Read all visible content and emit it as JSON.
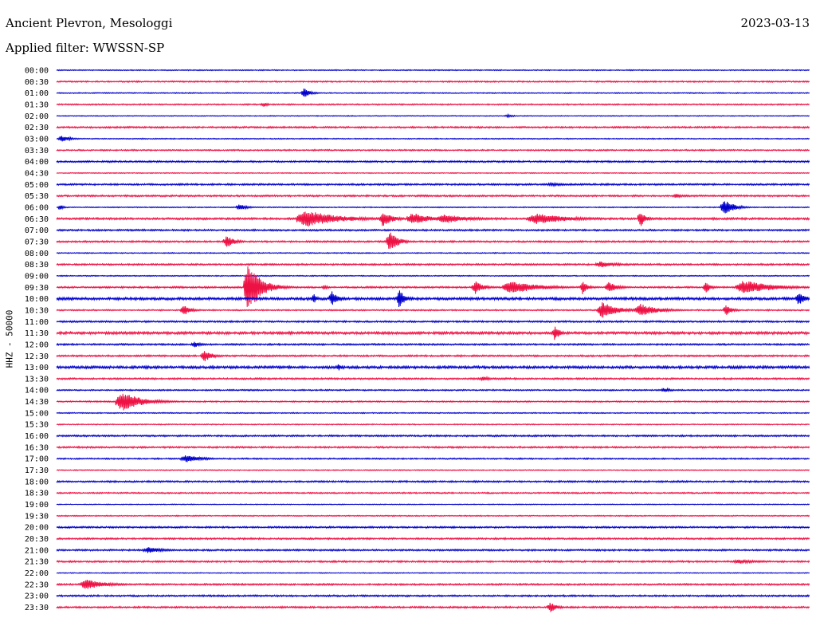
{
  "header": {
    "station": "Ancient Plevron, Mesologgi",
    "date": "2023-03-13",
    "filter": "Applied filter: WWSSN-SP"
  },
  "colors": {
    "even_trace": "#0000cc",
    "odd_trace": "#ee1144"
  },
  "chart_data": {
    "type": "line",
    "title": "Ancient Plevron, Mesologgi",
    "subtitle": "Applied filter: WWSSN-SP",
    "ylabel": "HHZ - 50000",
    "xlabel": "",
    "grid": false,
    "x_unit": "minutes within trace row (0-30)",
    "rows": [
      "00:00",
      "00:30",
      "01:00",
      "01:30",
      "02:00",
      "02:30",
      "03:00",
      "03:30",
      "04:00",
      "04:30",
      "05:00",
      "05:30",
      "06:00",
      "06:30",
      "07:00",
      "07:30",
      "08:00",
      "08:30",
      "09:00",
      "09:30",
      "10:00",
      "10:30",
      "11:00",
      "11:30",
      "12:00",
      "12:30",
      "13:00",
      "13:30",
      "14:00",
      "14:30",
      "15:00",
      "15:30",
      "16:00",
      "16:30",
      "17:00",
      "17:30",
      "18:00",
      "18:30",
      "19:00",
      "19:30",
      "20:00",
      "20:30",
      "21:00",
      "21:30",
      "22:00",
      "22:30",
      "23:00",
      "23:30"
    ],
    "noise_level": [
      0.6,
      0.8,
      0.6,
      0.8,
      0.5,
      1.0,
      0.6,
      0.8,
      1.0,
      0.5,
      1.0,
      1.0,
      0.6,
      1.2,
      1.0,
      1.0,
      0.6,
      1.0,
      0.6,
      1.0,
      1.5,
      0.8,
      1.0,
      1.5,
      1.0,
      1.0,
      1.5,
      1.0,
      0.8,
      0.8,
      0.6,
      0.6,
      1.0,
      1.0,
      0.8,
      0.6,
      1.0,
      0.8,
      0.5,
      0.6,
      1.0,
      1.0,
      1.0,
      1.0,
      0.5,
      1.0,
      1.0,
      1.0
    ],
    "events": [
      {
        "row": 2,
        "x": 9.8,
        "duration": 0.4,
        "amplitude": 6
      },
      {
        "row": 3,
        "x": 8.2,
        "duration": 0.3,
        "amplitude": 3
      },
      {
        "row": 4,
        "x": 17.9,
        "duration": 0.4,
        "amplitude": 2
      },
      {
        "row": 6,
        "x": 0.1,
        "duration": 0.6,
        "amplitude": 4
      },
      {
        "row": 10,
        "x": 19.5,
        "duration": 1.3,
        "amplitude": 2
      },
      {
        "row": 11,
        "x": 24.6,
        "duration": 0.4,
        "amplitude": 3
      },
      {
        "row": 12,
        "x": 0.1,
        "duration": 0.2,
        "amplitude": 4
      },
      {
        "row": 12,
        "x": 7.2,
        "duration": 0.5,
        "amplitude": 4
      },
      {
        "row": 12,
        "x": 26.5,
        "duration": 0.6,
        "amplitude": 10
      },
      {
        "row": 13,
        "x": 9.6,
        "duration": 2.1,
        "amplitude": 11
      },
      {
        "row": 13,
        "x": 12.9,
        "duration": 0.6,
        "amplitude": 10
      },
      {
        "row": 13,
        "x": 14.0,
        "duration": 1.1,
        "amplitude": 8
      },
      {
        "row": 13,
        "x": 15.2,
        "duration": 1.6,
        "amplitude": 6
      },
      {
        "row": 13,
        "x": 18.8,
        "duration": 2.1,
        "amplitude": 7
      },
      {
        "row": 13,
        "x": 23.2,
        "duration": 0.3,
        "amplitude": 12
      },
      {
        "row": 15,
        "x": 6.7,
        "duration": 0.5,
        "amplitude": 8
      },
      {
        "row": 15,
        "x": 13.2,
        "duration": 0.5,
        "amplitude": 14
      },
      {
        "row": 17,
        "x": 21.5,
        "duration": 1.1,
        "amplitude": 4
      },
      {
        "row": 19,
        "x": 7.5,
        "duration": 0.8,
        "amplitude": 34
      },
      {
        "row": 19,
        "x": 10.6,
        "duration": 0.3,
        "amplitude": 3
      },
      {
        "row": 19,
        "x": 16.6,
        "duration": 0.5,
        "amplitude": 9
      },
      {
        "row": 19,
        "x": 17.8,
        "duration": 1.7,
        "amplitude": 9
      },
      {
        "row": 19,
        "x": 20.9,
        "duration": 0.3,
        "amplitude": 9
      },
      {
        "row": 19,
        "x": 21.9,
        "duration": 0.6,
        "amplitude": 7
      },
      {
        "row": 19,
        "x": 25.8,
        "duration": 0.3,
        "amplitude": 8
      },
      {
        "row": 19,
        "x": 27.1,
        "duration": 1.8,
        "amplitude": 9
      },
      {
        "row": 20,
        "x": 10.2,
        "duration": 0.2,
        "amplitude": 7
      },
      {
        "row": 20,
        "x": 10.9,
        "duration": 0.4,
        "amplitude": 10
      },
      {
        "row": 20,
        "x": 13.6,
        "duration": 0.3,
        "amplitude": 14
      },
      {
        "row": 20,
        "x": 29.5,
        "duration": 0.4,
        "amplitude": 9
      },
      {
        "row": 21,
        "x": 5.0,
        "duration": 0.4,
        "amplitude": 8
      },
      {
        "row": 21,
        "x": 21.6,
        "duration": 0.9,
        "amplitude": 11
      },
      {
        "row": 21,
        "x": 23.1,
        "duration": 1.1,
        "amplitude": 8
      },
      {
        "row": 21,
        "x": 26.6,
        "duration": 0.4,
        "amplitude": 7
      },
      {
        "row": 23,
        "x": 19.8,
        "duration": 0.3,
        "amplitude": 10
      },
      {
        "row": 24,
        "x": 5.4,
        "duration": 0.5,
        "amplitude": 4
      },
      {
        "row": 25,
        "x": 5.8,
        "duration": 0.5,
        "amplitude": 8
      },
      {
        "row": 26,
        "x": 11.2,
        "duration": 0.2,
        "amplitude": 5
      },
      {
        "row": 27,
        "x": 16.9,
        "duration": 0.5,
        "amplitude": 3
      },
      {
        "row": 28,
        "x": 24.1,
        "duration": 0.5,
        "amplitude": 3
      },
      {
        "row": 29,
        "x": 2.4,
        "duration": 1.3,
        "amplitude": 12
      },
      {
        "row": 34,
        "x": 5.0,
        "duration": 1.0,
        "amplitude": 5
      },
      {
        "row": 42,
        "x": 3.5,
        "duration": 1.0,
        "amplitude": 4
      },
      {
        "row": 43,
        "x": 27.0,
        "duration": 1.2,
        "amplitude": 3
      },
      {
        "row": 45,
        "x": 1.0,
        "duration": 1.2,
        "amplitude": 7
      },
      {
        "row": 47,
        "x": 19.6,
        "duration": 0.4,
        "amplitude": 7
      }
    ]
  }
}
